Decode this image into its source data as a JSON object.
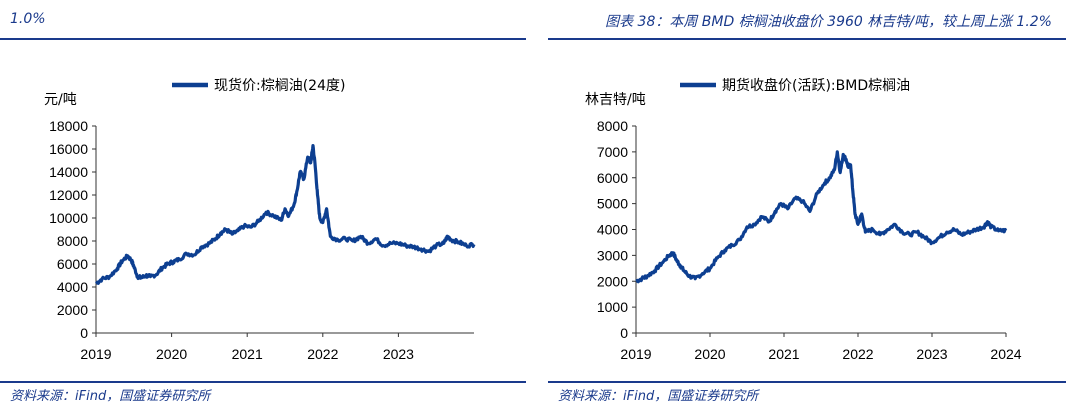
{
  "left": {
    "header": "1.0%",
    "source": "资料来源：iFind，国盛证券研究所",
    "chart_data": {
      "type": "line",
      "title": "",
      "ylabel": "元/吨",
      "xlabel": "",
      "legend": "现货价:棕榈油(24度)",
      "legend_position": "top-center",
      "ylim": [
        0,
        18000
      ],
      "yticks": [
        0,
        2000,
        4000,
        6000,
        8000,
        10000,
        12000,
        14000,
        16000,
        18000
      ],
      "xlim": [
        2019.0,
        2024.0
      ],
      "xticks": [
        "2019",
        "2020",
        "2021",
        "2022",
        "2023"
      ],
      "xtick_values": [
        2019,
        2020,
        2021,
        2022,
        2023
      ],
      "color": "#0d3f91",
      "series": [
        {
          "name": "现货价:棕榈油(24度)",
          "x": [
            2019.0,
            2019.08,
            2019.18,
            2019.28,
            2019.35,
            2019.42,
            2019.47,
            2019.5,
            2019.55,
            2019.6,
            2019.66,
            2019.72,
            2019.8,
            2019.88,
            2019.95,
            2020.02,
            2020.1,
            2020.2,
            2020.3,
            2020.4,
            2020.5,
            2020.58,
            2020.65,
            2020.72,
            2020.8,
            2020.88,
            2020.96,
            2021.05,
            2021.15,
            2021.25,
            2021.35,
            2021.45,
            2021.5,
            2021.55,
            2021.62,
            2021.66,
            2021.7,
            2021.75,
            2021.8,
            2021.84,
            2021.87,
            2021.9,
            2021.93,
            2021.96,
            2022.0,
            2022.05,
            2022.1,
            2022.2,
            2022.3,
            2022.4,
            2022.5,
            2022.6,
            2022.7,
            2022.8,
            2022.9,
            2023.0,
            2023.1,
            2023.2,
            2023.3,
            2023.4,
            2023.5,
            2023.6,
            2023.65,
            2023.7,
            2023.8,
            2023.9,
            2024.0
          ],
          "values": [
            4300,
            4700,
            4900,
            5600,
            6300,
            6700,
            6300,
            5800,
            4900,
            4800,
            5000,
            4900,
            5100,
            5700,
            6000,
            6200,
            6400,
            6900,
            6800,
            7500,
            7800,
            8200,
            8700,
            9000,
            8600,
            8900,
            9300,
            9200,
            9700,
            10500,
            10200,
            9800,
            10800,
            10200,
            11200,
            12400,
            14000,
            13400,
            15300,
            14800,
            16300,
            14500,
            12000,
            10000,
            9600,
            10800,
            8400,
            8100,
            8200,
            8000,
            8400,
            7800,
            8200,
            7600,
            7800,
            7800,
            7600,
            7500,
            7300,
            7100,
            7600,
            7800,
            8400,
            8100,
            7900,
            7600,
            7700
          ]
        }
      ]
    }
  },
  "right": {
    "header": "图表 38：本周 BMD 棕榈油收盘价 3960 林吉特/吨，较上周上涨 1.2%",
    "source": "资料来源：iFind，国盛证券研究所",
    "chart_data": {
      "type": "line",
      "title": "",
      "ylabel": "林吉特/吨",
      "xlabel": "",
      "legend": "期货收盘价(活跃):BMD棕榈油",
      "legend_position": "top-center",
      "ylim": [
        0,
        8000
      ],
      "yticks": [
        0,
        1000,
        2000,
        3000,
        4000,
        5000,
        6000,
        7000,
        8000
      ],
      "xlim": [
        2019.0,
        2024.0
      ],
      "xticks": [
        "2019",
        "2020",
        "2021",
        "2022",
        "2023",
        "2024"
      ],
      "xtick_values": [
        2019,
        2020,
        2021,
        2022,
        2023,
        2024
      ],
      "color": "#0d3f91",
      "series": [
        {
          "name": "期货收盘价(活跃):BMD棕榈油",
          "x": [
            2019.0,
            2019.08,
            2019.15,
            2019.25,
            2019.35,
            2019.45,
            2019.5,
            2019.55,
            2019.6,
            2019.65,
            2019.72,
            2019.8,
            2019.9,
            2020.0,
            2020.1,
            2020.2,
            2020.3,
            2020.4,
            2020.5,
            2020.6,
            2020.7,
            2020.8,
            2020.88,
            2020.96,
            2021.05,
            2021.15,
            2021.25,
            2021.35,
            2021.45,
            2021.55,
            2021.62,
            2021.68,
            2021.72,
            2021.76,
            2021.8,
            2021.84,
            2021.87,
            2021.9,
            2021.93,
            2021.96,
            2022.0,
            2022.05,
            2022.1,
            2022.2,
            2022.3,
            2022.4,
            2022.5,
            2022.6,
            2022.7,
            2022.8,
            2022.9,
            2023.0,
            2023.1,
            2023.2,
            2023.3,
            2023.4,
            2023.5,
            2023.6,
            2023.7,
            2023.75,
            2023.8,
            2023.9,
            2024.0
          ],
          "values": [
            2000,
            2100,
            2200,
            2400,
            2700,
            3000,
            3100,
            2800,
            2600,
            2400,
            2200,
            2100,
            2300,
            2500,
            2900,
            3200,
            3400,
            3600,
            4100,
            4200,
            4500,
            4300,
            4700,
            5000,
            4800,
            5200,
            5100,
            4700,
            5400,
            5800,
            6000,
            6300,
            7000,
            6200,
            6900,
            6700,
            6400,
            6500,
            5500,
            4600,
            4200,
            4600,
            3900,
            4000,
            3800,
            4000,
            4200,
            3900,
            3800,
            3900,
            3700,
            3500,
            3700,
            3900,
            4000,
            3800,
            3900,
            4000,
            4100,
            4300,
            4100,
            3950,
            3960
          ]
        }
      ]
    }
  }
}
